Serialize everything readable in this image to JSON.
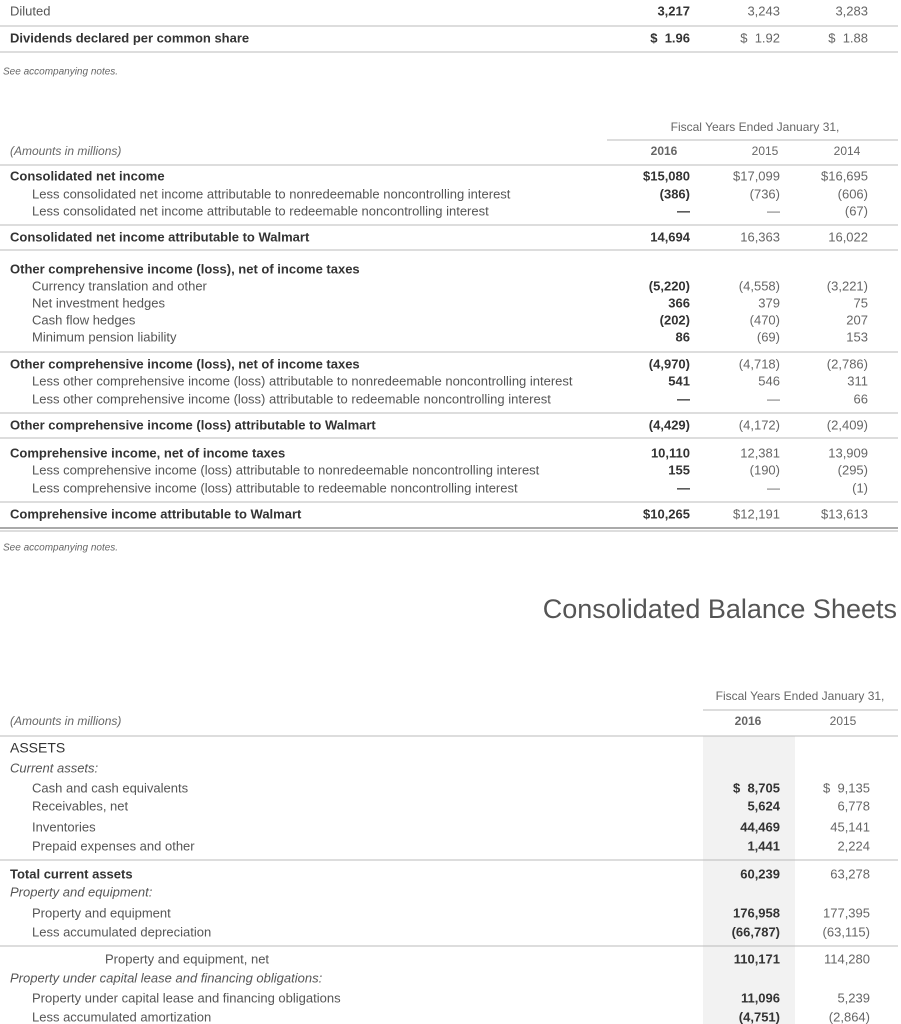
{
  "top": {
    "rows": [
      {
        "label": "Diluted",
        "values": [
          "3,217",
          "3,243",
          "3,283"
        ]
      },
      {
        "label": "Dividends declared per common share",
        "values": [
          "$  1.96",
          "$  1.92",
          "$  1.88"
        ]
      }
    ],
    "note": "See accompanying notes."
  },
  "comprehensive": {
    "header": "Fiscal Years Ended January 31,",
    "units": "(Amounts in millions)",
    "years": [
      "2016",
      "2015",
      "2014"
    ],
    "rows": [
      {
        "label": "Consolidated net income",
        "values": [
          "$15,080",
          "$17,099",
          "$16,695"
        ]
      },
      {
        "label": "Less consolidated net income attributable to nonredeemable noncontrolling interest",
        "values": [
          "(386)",
          "(736)",
          "(606)"
        ]
      },
      {
        "label": "Less consolidated net income attributable to redeemable noncontrolling interest",
        "values": [
          "—",
          "—",
          "(67)"
        ]
      },
      {
        "label": "Consolidated net income attributable to Walmart",
        "values": [
          "14,694",
          "16,363",
          "16,022"
        ]
      },
      {
        "label": "Other comprehensive income (loss), net of income taxes"
      },
      {
        "label": "Currency translation and other",
        "values": [
          "(5,220)",
          "(4,558)",
          "(3,221)"
        ]
      },
      {
        "label": "Net investment hedges",
        "values": [
          "366",
          "379",
          "75"
        ]
      },
      {
        "label": "Cash flow hedges",
        "values": [
          "(202)",
          "(470)",
          "207"
        ]
      },
      {
        "label": "Minimum pension liability",
        "values": [
          "86",
          "(69)",
          "153"
        ]
      },
      {
        "label": "Other comprehensive income (loss), net of income taxes",
        "values": [
          "(4,970)",
          "(4,718)",
          "(2,786)"
        ]
      },
      {
        "label": "Less other comprehensive income (loss) attributable to nonredeemable noncontrolling interest",
        "values": [
          "541",
          "546",
          "311"
        ]
      },
      {
        "label": "Less other comprehensive income (loss) attributable to redeemable noncontrolling interest",
        "values": [
          "—",
          "—",
          "66"
        ]
      },
      {
        "label": "Other comprehensive income (loss) attributable to Walmart",
        "values": [
          "(4,429)",
          "(4,172)",
          "(2,409)"
        ]
      },
      {
        "label": "Comprehensive income, net of income taxes",
        "values": [
          "10,110",
          "12,381",
          "13,909"
        ]
      },
      {
        "label": "Less comprehensive income (loss) attributable to nonredeemable noncontrolling interest",
        "values": [
          "155",
          "(190)",
          "(295)"
        ]
      },
      {
        "label": "Less comprehensive income (loss) attributable to redeemable noncontrolling interest",
        "values": [
          "—",
          "—",
          "(1)"
        ]
      },
      {
        "label": "Comprehensive income attributable to Walmart",
        "values": [
          "$10,265",
          "$12,191",
          "$13,613"
        ]
      }
    ],
    "note": "See accompanying notes."
  },
  "balance": {
    "title": "Consolidated Balance Sheets",
    "header": "Fiscal Years Ended January 31,",
    "units": "(Amounts in millions)",
    "years": [
      "2016",
      "2015"
    ],
    "rows": [
      {
        "label": "ASSETS"
      },
      {
        "label": "Current assets:"
      },
      {
        "label": "Cash and cash equivalents",
        "values": [
          "$  8,705",
          "$  9,135"
        ]
      },
      {
        "label": "Receivables, net",
        "values": [
          "5,624",
          "6,778"
        ]
      },
      {
        "label": "Inventories",
        "values": [
          "44,469",
          "45,141"
        ]
      },
      {
        "label": "Prepaid expenses and other",
        "values": [
          "1,441",
          "2,224"
        ]
      },
      {
        "label": "Total current assets",
        "values": [
          "60,239",
          "63,278"
        ]
      },
      {
        "label": "Property and equipment:"
      },
      {
        "label": "Property and equipment",
        "values": [
          "176,958",
          "177,395"
        ]
      },
      {
        "label": "Less accumulated depreciation",
        "values": [
          "(66,787)",
          "(63,115)"
        ]
      },
      {
        "label": "Property and equipment, net",
        "values": [
          "110,171",
          "114,280"
        ]
      },
      {
        "label": "Property under capital lease and financing obligations:"
      },
      {
        "label": "Property under capital lease and financing obligations",
        "values": [
          "11,096",
          "5,239"
        ]
      },
      {
        "label": "Less accumulated amortization",
        "values": [
          "(4,751)",
          "(2,864)"
        ]
      }
    ]
  }
}
